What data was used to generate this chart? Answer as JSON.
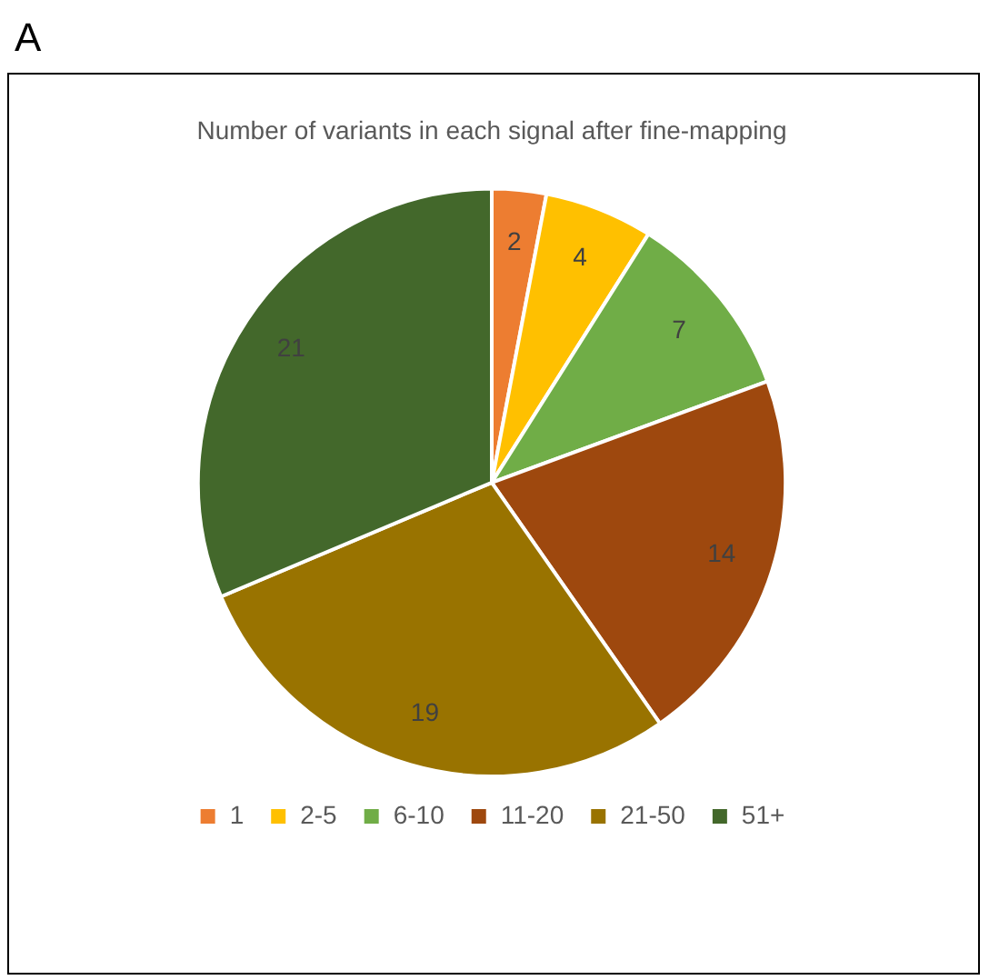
{
  "chart_data": {
    "type": "pie",
    "title": "Number of variants in each signal after fine-mapping",
    "annotations": [
      "A"
    ],
    "categories": [
      "1",
      "2-5",
      "6-10",
      "11-20",
      "21-50",
      "51+"
    ],
    "values": [
      2,
      4,
      7,
      14,
      19,
      21
    ],
    "colors": [
      "#ed7d31",
      "#ffc000",
      "#70ad47",
      "#9e480e",
      "#997300",
      "#43682b"
    ],
    "data_labels": true,
    "legend": "bottom"
  }
}
